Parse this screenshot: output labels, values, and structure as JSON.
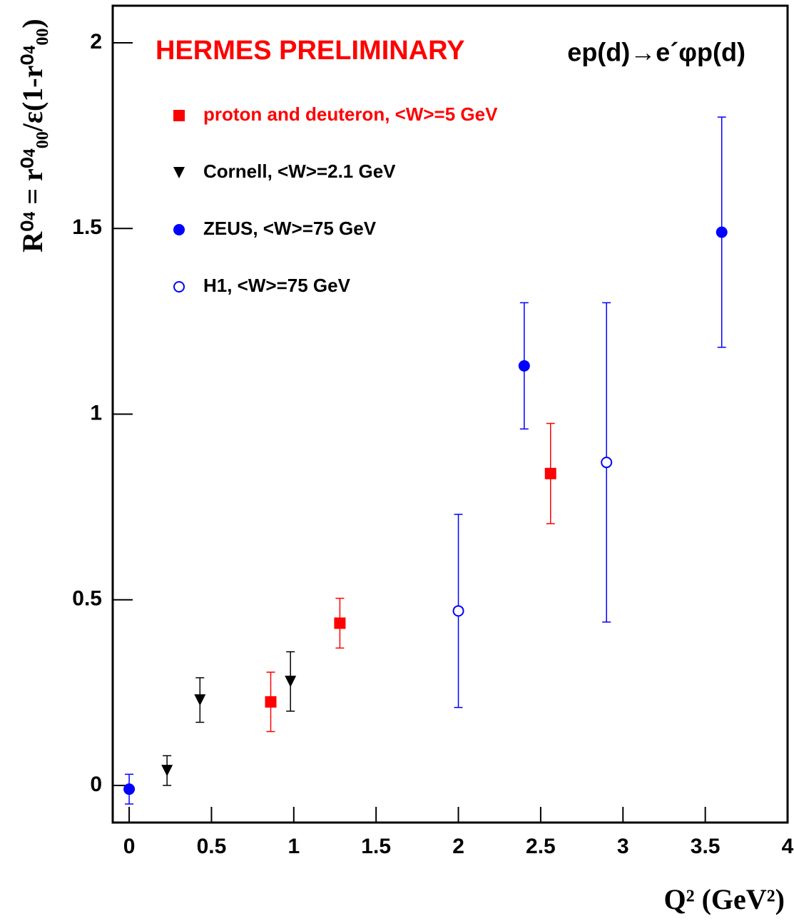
{
  "chart_data": {
    "type": "scatter",
    "title": "HERMES PRELIMINARY",
    "subtitle": "ep(d)→e´φp(d)",
    "title_color": "#ff0000",
    "xlabel": "Q² (GeV²)",
    "ylabel": "R⁰⁴ = r⁰⁴₀₀/ε(1-r⁰⁴₀₀)",
    "xlim": [
      -0.1,
      4
    ],
    "ylim": [
      -0.1,
      2.1
    ],
    "xticks": [
      0,
      0.5,
      1,
      1.5,
      2,
      2.5,
      3,
      3.5,
      4
    ],
    "yticks": [
      0,
      0.5,
      1,
      1.5,
      2
    ],
    "grid": false,
    "legend": "upper-left",
    "series": [
      {
        "name": "proton and deuteron,  <W>=5 GeV",
        "color": "#ff0000",
        "marker": "square",
        "x": [
          0.86,
          1.28,
          2.56
        ],
        "values": [
          0.225,
          0.437,
          0.84
        ],
        "errors": [
          0.08,
          0.067,
          0.135
        ]
      },
      {
        "name": "Cornell,  <W>=2.1 GeV",
        "color": "#000000",
        "marker": "triangle-down",
        "x": [
          0.23,
          0.43,
          0.98
        ],
        "values": [
          0.04,
          0.23,
          0.28
        ],
        "errors": [
          0.04,
          0.06,
          0.08
        ]
      },
      {
        "name": "ZEUS,  <W>=75 GeV",
        "color": "#0000ff",
        "marker": "circle",
        "x": [
          0,
          2.4,
          3.6
        ],
        "values": [
          -0.01,
          1.13,
          1.49
        ],
        "errors": [
          0.04,
          0.17,
          0.31
        ]
      },
      {
        "name": "H1,  <W>=75 GeV",
        "color": "#0000ff",
        "marker": "circle-open",
        "x": [
          2.0,
          2.9
        ],
        "values": [
          0.47,
          0.87
        ],
        "errors": [
          0.26,
          0.43
        ]
      }
    ]
  }
}
